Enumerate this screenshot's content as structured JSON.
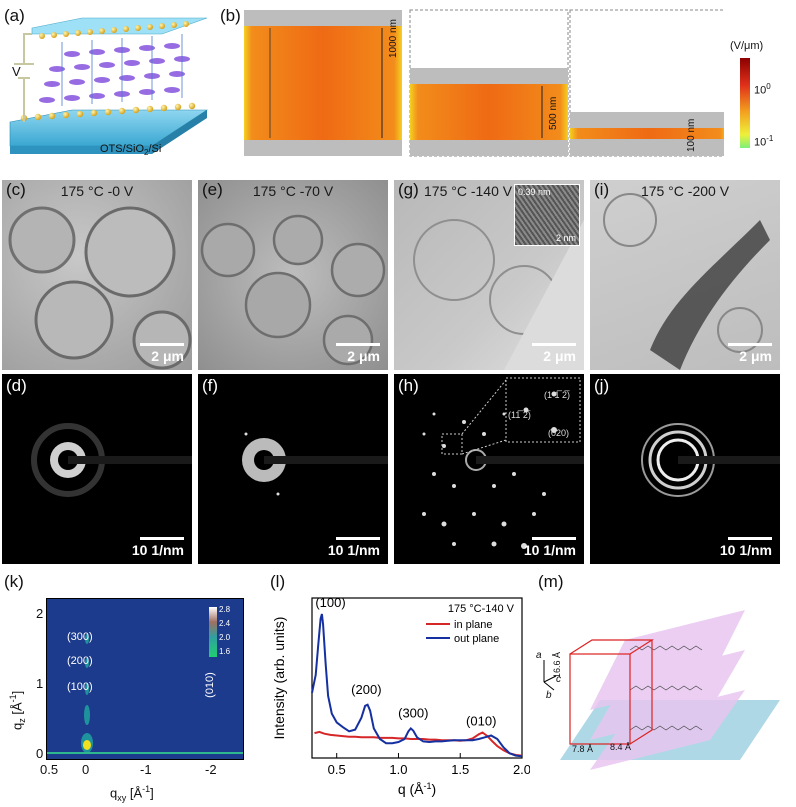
{
  "panels": {
    "a": {
      "label": "(a)",
      "voltage": "V",
      "substrate_prefix": "OTS/SiO",
      "substrate_sub": "2",
      "substrate_suffix": "/Si"
    },
    "b": {
      "label": "(b)",
      "thicknesses": [
        "1000 nm",
        "500 nm",
        "100 nm"
      ],
      "colorbar_unit": "(V/μm)",
      "colorbar_top_base": "10",
      "colorbar_top_exp": "0",
      "colorbar_bottom_base": "10",
      "colorbar_bottom_exp": "-1"
    },
    "c": {
      "label": "(c)",
      "condition": "175 °C -0 V",
      "scale": "2 μm"
    },
    "e": {
      "label": "(e)",
      "condition": "175 °C -70 V",
      "scale": "2 μm"
    },
    "g": {
      "label": "(g)",
      "condition": "175 °C -140 V",
      "scale": "2 μm",
      "inset_d": "0.39 nm",
      "inset_scale": "2 nm"
    },
    "i": {
      "label": "(i)",
      "condition": "175 °C -200 V",
      "scale": "2 μm"
    },
    "d": {
      "label": "(d)",
      "scale": "10 1/nm"
    },
    "f": {
      "label": "(f)",
      "scale": "10 1/nm"
    },
    "h": {
      "label": "(h)",
      "scale": "10 1/nm",
      "spots": [
        "(11̅ 2̅)",
        "(1 1̅ 2̅)",
        "(020)"
      ]
    },
    "j": {
      "label": "(j)",
      "scale": "10 1/nm"
    },
    "k": {
      "label": "(k)",
      "ylabel": "q",
      "ylabel_sub": "z",
      "ylabel_unit": " [Å",
      "ylabel_unit_sup": "-1",
      "ylabel_end": "]",
      "xlabel": "q",
      "xlabel_sub": "xy",
      "xlabel_unit": " [Å",
      "xlabel_unit_sup": "-1",
      "xlabel_end": "]",
      "peaks": [
        "(300)",
        "(200)",
        "(100)",
        "(010)"
      ],
      "yticks": [
        "0",
        "1",
        "2"
      ],
      "xticks": [
        "0.5",
        "0",
        "-1",
        "-2"
      ],
      "colorbar": [
        "2.8",
        "2.4",
        "2.0",
        "1.6"
      ]
    },
    "m": {
      "label": "(m)",
      "axes": [
        "a",
        "c",
        "b"
      ],
      "dims": [
        "16.6 Å",
        "7.8 Å",
        "8.4 Å"
      ]
    }
  },
  "chart_data": {
    "label": "(l)",
    "type": "line",
    "title": "175 °C-140 V",
    "xlabel": "q (Å",
    "xlabel_sup": "-1",
    "xlabel_end": ")",
    "ylabel": "Intensity (arb. units)",
    "xlim": [
      0.3,
      2.0
    ],
    "ylim": [
      0.8,
      3.5
    ],
    "xticks": [
      0.5,
      1.0,
      1.5,
      2.0
    ],
    "xtick_labels": [
      "0.5",
      "1.0",
      "1.5",
      "2.0"
    ],
    "series": [
      {
        "name": "in plane",
        "color": "#d62728",
        "x": [
          0.32,
          0.36,
          0.4,
          0.45,
          0.5,
          0.55,
          0.6,
          0.65,
          0.7,
          0.75,
          0.8,
          0.85,
          0.9,
          0.95,
          1.0,
          1.05,
          1.1,
          1.15,
          1.2,
          1.25,
          1.3,
          1.35,
          1.4,
          1.45,
          1.5,
          1.55,
          1.6,
          1.65,
          1.68,
          1.72,
          1.76,
          1.8,
          1.85,
          1.9,
          1.95,
          2.0
        ],
        "y": [
          1.22,
          1.24,
          1.21,
          1.19,
          1.18,
          1.17,
          1.16,
          1.16,
          1.15,
          1.15,
          1.15,
          1.14,
          1.14,
          1.14,
          1.13,
          1.13,
          1.12,
          1.12,
          1.12,
          1.11,
          1.11,
          1.1,
          1.1,
          1.1,
          1.09,
          1.1,
          1.13,
          1.2,
          1.23,
          1.17,
          1.08,
          1.0,
          0.93,
          0.88,
          0.85,
          0.84
        ]
      },
      {
        "name": "out plane",
        "color": "#1530a0",
        "x": [
          0.3,
          0.33,
          0.35,
          0.37,
          0.38,
          0.39,
          0.41,
          0.43,
          0.46,
          0.5,
          0.55,
          0.6,
          0.65,
          0.7,
          0.73,
          0.75,
          0.77,
          0.8,
          0.85,
          0.9,
          0.95,
          1.0,
          1.05,
          1.08,
          1.1,
          1.12,
          1.15,
          1.2,
          1.25,
          1.3,
          1.35,
          1.4,
          1.45,
          1.5,
          1.55,
          1.6,
          1.65,
          1.7,
          1.75,
          1.8,
          1.85,
          1.9,
          1.95,
          2.0
        ],
        "y": [
          1.9,
          2.2,
          2.7,
          3.15,
          3.23,
          3.05,
          2.4,
          1.85,
          1.55,
          1.4,
          1.32,
          1.25,
          1.28,
          1.48,
          1.68,
          1.7,
          1.6,
          1.3,
          1.12,
          1.05,
          1.05,
          1.07,
          1.12,
          1.25,
          1.3,
          1.26,
          1.15,
          1.08,
          1.07,
          1.08,
          1.08,
          1.09,
          1.1,
          1.1,
          1.1,
          1.1,
          1.12,
          1.15,
          1.18,
          1.12,
          0.98,
          0.88,
          0.84,
          0.83
        ]
      }
    ],
    "annotations": [
      "(100)",
      "(200)",
      "(300)",
      "(010)"
    ]
  }
}
